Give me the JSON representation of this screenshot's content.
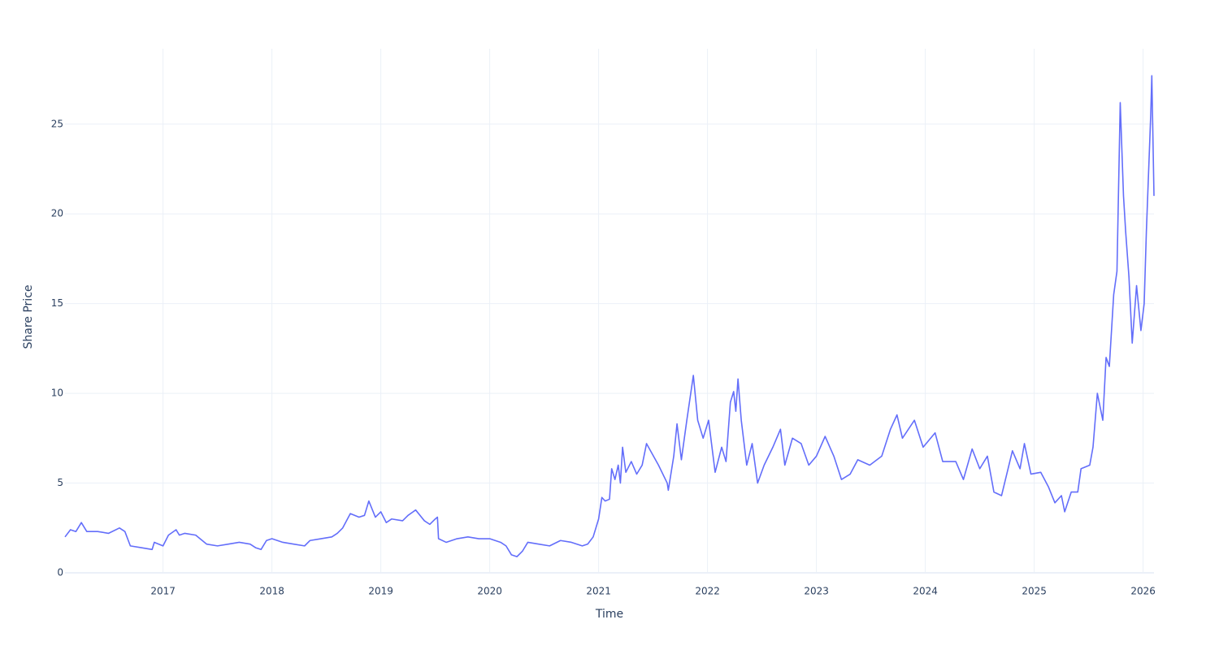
{
  "chart_data": {
    "type": "line",
    "xlabel": "Time",
    "ylabel": "Share Price",
    "xlim": [
      2016.1,
      2026.1
    ],
    "xticks": [
      2017,
      2018,
      2019,
      2020,
      2021,
      2022,
      2023,
      2024,
      2025,
      2026
    ],
    "ylim": [
      0,
      29.2
    ],
    "yticks": [
      0,
      5,
      10,
      15,
      20,
      25
    ],
    "grid": true,
    "series": [
      {
        "name": "Share Price",
        "color": "#636efa",
        "x": [
          2016.1,
          2016.15,
          2016.2,
          2016.25,
          2016.3,
          2016.4,
          2016.5,
          2016.6,
          2016.65,
          2016.7,
          2016.8,
          2016.9,
          2016.92,
          2017.0,
          2017.05,
          2017.12,
          2017.15,
          2017.2,
          2017.3,
          2017.4,
          2017.5,
          2017.6,
          2017.7,
          2017.8,
          2017.85,
          2017.9,
          2017.95,
          2018.0,
          2018.1,
          2018.2,
          2018.3,
          2018.35,
          2018.45,
          2018.55,
          2018.6,
          2018.65,
          2018.72,
          2018.8,
          2018.85,
          2018.89,
          2018.95,
          2019.0,
          2019.05,
          2019.1,
          2019.2,
          2019.25,
          2019.32,
          2019.4,
          2019.45,
          2019.5,
          2019.52,
          2019.53,
          2019.6,
          2019.7,
          2019.8,
          2019.9,
          2020.0,
          2020.1,
          2020.15,
          2020.2,
          2020.25,
          2020.3,
          2020.35,
          2020.45,
          2020.55,
          2020.65,
          2020.75,
          2020.85,
          2020.9,
          2020.95,
          2021.0,
          2021.03,
          2021.06,
          2021.1,
          2021.12,
          2021.15,
          2021.18,
          2021.2,
          2021.22,
          2021.25,
          2021.3,
          2021.35,
          2021.4,
          2021.44,
          2021.55,
          2021.63,
          2021.64,
          2021.69,
          2021.72,
          2021.76,
          2021.81,
          2021.87,
          2021.91,
          2021.96,
          2022.01,
          2022.07,
          2022.13,
          2022.17,
          2022.21,
          2022.24,
          2022.26,
          2022.28,
          2022.31,
          2022.36,
          2022.41,
          2022.46,
          2022.52,
          2022.6,
          2022.67,
          2022.71,
          2022.78,
          2022.86,
          2022.93,
          2023.0,
          2023.08,
          2023.16,
          2023.23,
          2023.31,
          2023.38,
          2023.49,
          2023.6,
          2023.68,
          2023.74,
          2023.79,
          2023.9,
          2023.98,
          2024.09,
          2024.16,
          2024.28,
          2024.35,
          2024.43,
          2024.5,
          2024.57,
          2024.63,
          2024.7,
          2024.8,
          2024.87,
          2024.91,
          2024.97,
          2025.06,
          2025.13,
          2025.19,
          2025.25,
          2025.28,
          2025.34,
          2025.4,
          2025.43,
          2025.51,
          2025.54,
          2025.58,
          2025.63,
          2025.66,
          2025.69,
          2025.73,
          2025.76,
          2025.79,
          2025.82,
          2025.84,
          2025.87,
          2025.9,
          2025.94,
          2025.98,
          2026.01,
          2026.03,
          2026.07,
          2026.08,
          2026.1
        ],
        "values": [
          2.0,
          2.4,
          2.3,
          2.8,
          2.3,
          2.3,
          2.2,
          2.5,
          2.3,
          1.5,
          1.4,
          1.3,
          1.7,
          1.5,
          2.1,
          2.4,
          2.1,
          2.2,
          2.1,
          1.6,
          1.5,
          1.6,
          1.7,
          1.6,
          1.4,
          1.3,
          1.8,
          1.9,
          1.7,
          1.6,
          1.5,
          1.8,
          1.9,
          2.0,
          2.2,
          2.5,
          3.3,
          3.1,
          3.2,
          4.0,
          3.1,
          3.4,
          2.8,
          3.0,
          2.9,
          3.2,
          3.5,
          2.9,
          2.7,
          3.0,
          3.1,
          1.9,
          1.7,
          1.9,
          2.0,
          1.9,
          1.9,
          1.7,
          1.5,
          1.0,
          0.9,
          1.2,
          1.7,
          1.6,
          1.5,
          1.8,
          1.7,
          1.5,
          1.6,
          2.0,
          3.0,
          4.2,
          4.0,
          4.1,
          5.8,
          5.2,
          6.0,
          5.0,
          7.0,
          5.6,
          6.2,
          5.5,
          6.0,
          7.2,
          6.0,
          5.0,
          4.6,
          6.5,
          8.3,
          6.3,
          8.5,
          11.0,
          8.5,
          7.5,
          8.5,
          5.6,
          7.0,
          6.2,
          9.5,
          10.1,
          9.0,
          10.8,
          8.5,
          6.0,
          7.2,
          5.0,
          6.0,
          7.0,
          8.0,
          6.0,
          7.5,
          7.2,
          6.0,
          6.5,
          7.6,
          6.5,
          5.2,
          5.5,
          6.3,
          6.0,
          6.5,
          8.0,
          8.8,
          7.5,
          8.5,
          7.0,
          7.8,
          6.2,
          6.2,
          5.2,
          6.9,
          5.8,
          6.5,
          4.5,
          4.3,
          6.8,
          5.8,
          7.2,
          5.5,
          5.6,
          4.8,
          3.9,
          4.3,
          3.4,
          4.5,
          4.5,
          5.8,
          6.0,
          7.0,
          10.0,
          8.5,
          12.0,
          11.5,
          15.5,
          16.8,
          26.2,
          21.0,
          19.0,
          16.5,
          12.8,
          16.0,
          13.5,
          15.0,
          19.0,
          25.5,
          27.7,
          21.0
        ]
      }
    ]
  }
}
